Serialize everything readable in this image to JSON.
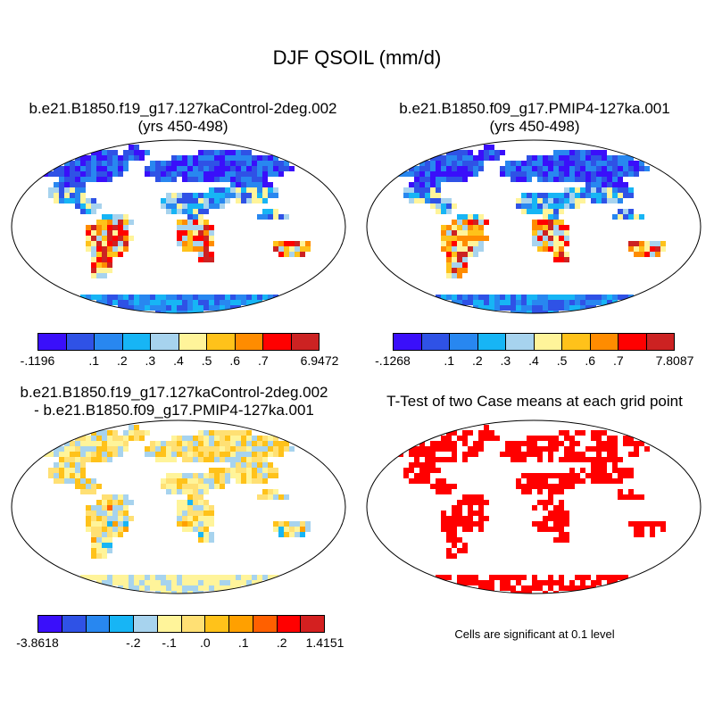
{
  "figure": {
    "title": "DJF QSOIL (mm/d)"
  },
  "panels": [
    {
      "title_line1": "b.e21.B1850.f19_g17.127kaControl-2deg.002",
      "title_line2": "(yrs 450-498)",
      "colorbar": {
        "colors": [
          "#3a0ffa",
          "#2f52e6",
          "#2887f0",
          "#17b5f5",
          "#a7d3ee",
          "#fff49a",
          "#ffc21a",
          "#ff8c00",
          "#ff0000",
          "#cc2222"
        ],
        "labels": [
          "-.1196",
          ".1",
          ".2",
          ".3",
          ".4",
          ".5",
          ".6",
          ".7",
          "6.9472"
        ]
      }
    },
    {
      "title_line1": "b.e21.B1850.f09_g17.PMIP4-127ka.001",
      "title_line2": "(yrs 450-498)",
      "colorbar": {
        "colors": [
          "#3a0ffa",
          "#2f52e6",
          "#2887f0",
          "#17b5f5",
          "#a7d3ee",
          "#fff49a",
          "#ffc21a",
          "#ff8c00",
          "#ff0000",
          "#cc2222"
        ],
        "labels": [
          "-.1268",
          ".1",
          ".2",
          ".3",
          ".4",
          ".5",
          ".6",
          ".7",
          "7.8087"
        ]
      }
    },
    {
      "title_line1": "b.e21.B1850.f19_g17.127kaControl-2deg.002",
      "title_line2": "- b.e21.B1850.f09_g17.PMIP4-127ka.001",
      "colorbar": {
        "colors": [
          "#3a0ffa",
          "#2f52e6",
          "#2887f0",
          "#17b5f5",
          "#a7d3ee",
          "#fff49a",
          "#ffe074",
          "#ffc21a",
          "#ffa000",
          "#ff6000",
          "#ff0000",
          "#d42020"
        ],
        "labels": [
          "-3.8618",
          "-.2",
          "-.1",
          ".0",
          ".1",
          ".2",
          "1.4151"
        ]
      }
    },
    {
      "title_line1": "T-Test of two Case means at each grid point",
      "note": "Cells are significant at 0.1 level"
    }
  ]
}
